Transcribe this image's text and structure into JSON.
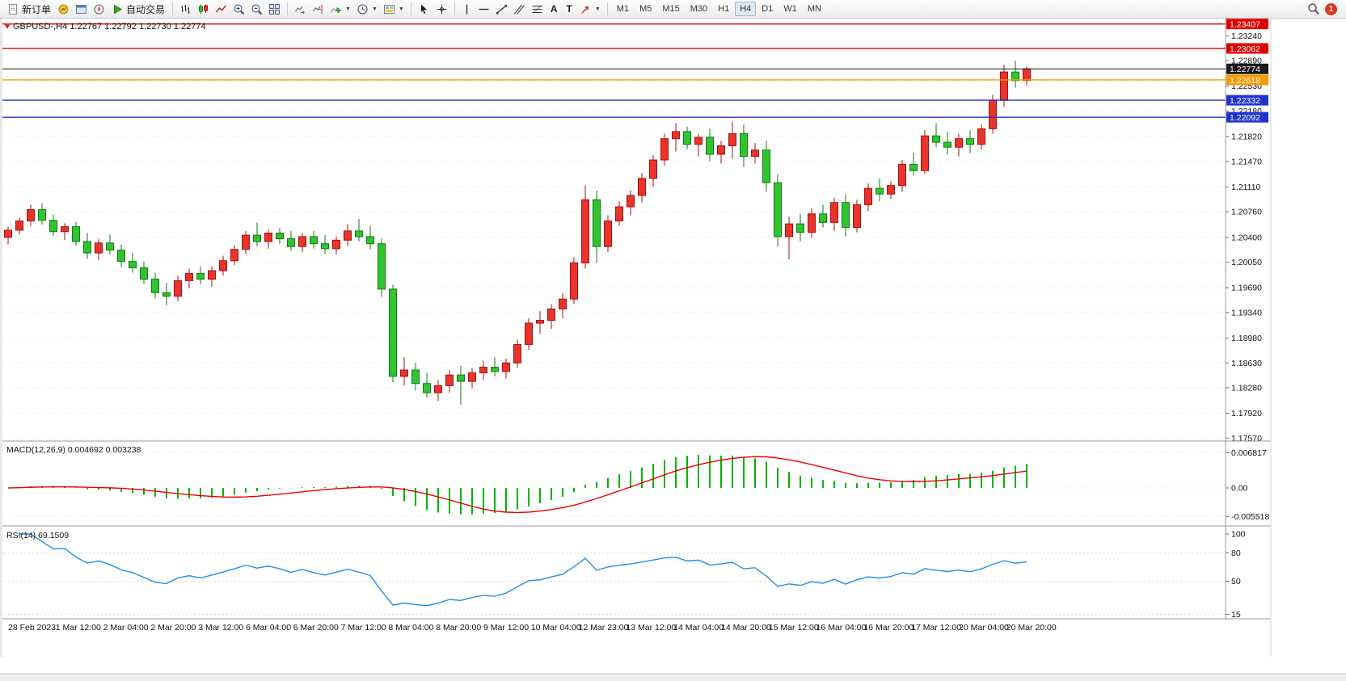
{
  "toolbar": {
    "new_order_label": "新订单",
    "auto_trading_label": "自动交易",
    "timeframes": [
      "M1",
      "M5",
      "M15",
      "M30",
      "H1",
      "H4",
      "D1",
      "W1",
      "MN"
    ],
    "active_timeframe": "H4",
    "notification_badge": "1",
    "icons": [
      "new-order",
      "market-watch",
      "data-window",
      "navigator",
      "auto-trading",
      "bar-chart",
      "candlestick-chart",
      "line-chart",
      "zoom-in",
      "zoom-out",
      "tile-windows",
      "auto-scroll",
      "chart-shift",
      "indicators",
      "periods",
      "templates",
      "cursor",
      "crosshair",
      "vertical-line",
      "horizontal-line",
      "trendline",
      "equidistant-channel",
      "fibonacci",
      "text",
      "text-label",
      "arrow-objects",
      "search"
    ]
  },
  "chart": {
    "symbol_period": "GBPUSD-,H4",
    "open": "1.22767",
    "high": "1.22792",
    "low": "1.22730",
    "close": "1.22774"
  },
  "indicators": {
    "macd": {
      "name": "MACD(12,26,9)",
      "value_main": "0.004692",
      "value_signal": "0.003238"
    },
    "rsi": {
      "name": "RSI(14)",
      "value": "69.1509"
    }
  },
  "chart_data": {
    "type": "candlestick",
    "symbol": "GBPUSD-",
    "timeframe": "H4",
    "colors": {
      "bull": "#e8342c",
      "bull_border": "#a31210",
      "bear": "#30c430",
      "bear_border": "#127a12",
      "macd_histogram": "#00b400",
      "macd_signal": "#ee0000",
      "rsi_line": "#2090e8",
      "grid": "#e6e6e6"
    },
    "price_range": {
      "max": 1.2346,
      "min": 1.1754
    },
    "price_ticks": [
      "1.23240",
      "1.22890",
      "1.22530",
      "1.22180",
      "1.21820",
      "1.21470",
      "1.21110",
      "1.20760",
      "1.20400",
      "1.20050",
      "1.19690",
      "1.19340",
      "1.18980",
      "1.18630",
      "1.18280",
      "1.17920",
      "1.17570"
    ],
    "levels": [
      {
        "price": 1.23407,
        "label": "1.23407",
        "color": "#e00000",
        "kind": "resistance-line"
      },
      {
        "price": 1.23062,
        "label": "1.23062",
        "color": "#e00000",
        "kind": "resistance-line"
      },
      {
        "price": 1.22774,
        "label": "1.22774",
        "color": "#1a1a1a",
        "kind": "current-price"
      },
      {
        "price": 1.22618,
        "label": "1.22618",
        "color": "#f59c00",
        "kind": "support-line"
      },
      {
        "price": 1.22332,
        "label": "1.22332",
        "color": "#2233cc",
        "kind": "support-line"
      },
      {
        "price": 1.22092,
        "label": "1.22092",
        "color": "#2233cc",
        "kind": "support-line"
      }
    ],
    "candles": [
      [
        1.204,
        1.2055,
        1.203,
        1.205
      ],
      [
        1.205,
        1.2068,
        1.2044,
        1.2063
      ],
      [
        1.2063,
        1.2086,
        1.2056,
        1.2079
      ],
      [
        1.2079,
        1.2088,
        1.2058,
        1.2064
      ],
      [
        1.2064,
        1.2072,
        1.2042,
        1.2048
      ],
      [
        1.2048,
        1.206,
        1.2036,
        1.2055
      ],
      [
        1.2055,
        1.2062,
        1.2028,
        1.2034
      ],
      [
        1.2034,
        1.2046,
        1.201,
        1.2018
      ],
      [
        1.2018,
        1.2038,
        1.2008,
        1.2032
      ],
      [
        1.2032,
        1.2044,
        1.2016,
        1.2022
      ],
      [
        1.2022,
        1.203,
        1.1998,
        1.2006
      ],
      [
        1.2006,
        1.2018,
        1.199,
        1.1997
      ],
      [
        1.1997,
        1.2006,
        1.1974,
        1.1981
      ],
      [
        1.1981,
        1.199,
        1.1954,
        1.1962
      ],
      [
        1.1962,
        1.1976,
        1.1944,
        1.1957
      ],
      [
        1.1957,
        1.1986,
        1.195,
        1.1979
      ],
      [
        1.1979,
        1.1996,
        1.1968,
        1.1989
      ],
      [
        1.1989,
        1.1999,
        1.1974,
        1.1981
      ],
      [
        1.1981,
        1.1999,
        1.197,
        1.1993
      ],
      [
        1.1993,
        1.2014,
        1.1986,
        1.2007
      ],
      [
        1.2007,
        1.2029,
        1.2001,
        1.2023
      ],
      [
        1.2023,
        1.2049,
        1.2016,
        1.2043
      ],
      [
        1.2043,
        1.2061,
        1.2027,
        1.2034
      ],
      [
        1.2034,
        1.2051,
        1.2024,
        1.2046
      ],
      [
        1.2046,
        1.2053,
        1.2031,
        1.2038
      ],
      [
        1.2038,
        1.2049,
        1.2021,
        1.2027
      ],
      [
        1.2027,
        1.2046,
        1.2019,
        1.2041
      ],
      [
        1.2041,
        1.2049,
        1.2024,
        1.2031
      ],
      [
        1.2031,
        1.2043,
        1.2017,
        1.2024
      ],
      [
        1.2024,
        1.2041,
        1.2016,
        1.2036
      ],
      [
        1.2036,
        1.2059,
        1.2028,
        1.2049
      ],
      [
        1.2049,
        1.2066,
        1.2034,
        1.2041
      ],
      [
        1.2041,
        1.2056,
        1.2023,
        1.2031
      ],
      [
        1.2031,
        1.2038,
        1.1956,
        1.1967
      ],
      [
        1.1967,
        1.1973,
        1.1836,
        1.1844
      ],
      [
        1.1844,
        1.1871,
        1.1831,
        1.1853
      ],
      [
        1.1853,
        1.1863,
        1.1824,
        1.1834
      ],
      [
        1.1834,
        1.1849,
        1.1814,
        1.1821
      ],
      [
        1.1821,
        1.1839,
        1.1809,
        1.1831
      ],
      [
        1.1831,
        1.1853,
        1.1821,
        1.1846
      ],
      [
        1.1846,
        1.1859,
        1.1804,
        1.1837
      ],
      [
        1.1837,
        1.1856,
        1.1827,
        1.1849
      ],
      [
        1.1849,
        1.1866,
        1.1839,
        1.1857
      ],
      [
        1.1857,
        1.1871,
        1.1844,
        1.1851
      ],
      [
        1.1851,
        1.1869,
        1.1841,
        1.1863
      ],
      [
        1.1863,
        1.1896,
        1.1856,
        1.1889
      ],
      [
        1.1889,
        1.1926,
        1.1881,
        1.1919
      ],
      [
        1.1919,
        1.1936,
        1.1904,
        1.1923
      ],
      [
        1.1923,
        1.1946,
        1.1911,
        1.1939
      ],
      [
        1.1939,
        1.1961,
        1.1926,
        1.1953
      ],
      [
        1.1953,
        1.2012,
        1.1946,
        1.2004
      ],
      [
        1.2004,
        1.2113,
        1.1996,
        1.2093
      ],
      [
        1.2093,
        1.2106,
        1.2004,
        1.2027
      ],
      [
        1.2027,
        1.2071,
        1.2019,
        1.2063
      ],
      [
        1.2063,
        1.2091,
        1.2056,
        1.2083
      ],
      [
        1.2083,
        1.2106,
        1.2071,
        1.2099
      ],
      [
        1.2099,
        1.2131,
        1.2089,
        1.2123
      ],
      [
        1.2123,
        1.2156,
        1.2111,
        1.2149
      ],
      [
        1.2149,
        1.2186,
        1.2141,
        1.2179
      ],
      [
        1.2179,
        1.2201,
        1.2161,
        1.2189
      ],
      [
        1.2189,
        1.2196,
        1.2164,
        1.2171
      ],
      [
        1.2171,
        1.2186,
        1.2154,
        1.2181
      ],
      [
        1.2181,
        1.2193,
        1.2147,
        1.2157
      ],
      [
        1.2157,
        1.2176,
        1.2144,
        1.2169
      ],
      [
        1.2169,
        1.2203,
        1.2151,
        1.2186
      ],
      [
        1.2186,
        1.2199,
        1.2139,
        1.2154
      ],
      [
        1.2154,
        1.2173,
        1.2144,
        1.2163
      ],
      [
        1.2163,
        1.2176,
        1.2104,
        1.2117
      ],
      [
        1.2117,
        1.2129,
        1.2027,
        1.2041
      ],
      [
        1.2041,
        1.2069,
        1.2009,
        1.2059
      ],
      [
        1.2059,
        1.2073,
        1.2034,
        1.2047
      ],
      [
        1.2047,
        1.2081,
        1.2039,
        1.2073
      ],
      [
        1.2073,
        1.2086,
        1.2054,
        1.2061
      ],
      [
        1.2061,
        1.2096,
        1.2049,
        1.2089
      ],
      [
        1.2089,
        1.2101,
        1.2041,
        1.2054
      ],
      [
        1.2054,
        1.2093,
        1.2047,
        1.2086
      ],
      [
        1.2086,
        1.2116,
        1.2077,
        1.2109
      ],
      [
        1.2109,
        1.2123,
        1.2091,
        1.2101
      ],
      [
        1.2101,
        1.2119,
        1.2094,
        1.2113
      ],
      [
        1.2113,
        1.2149,
        1.2104,
        1.2143
      ],
      [
        1.2143,
        1.2159,
        1.2127,
        1.2134
      ],
      [
        1.2134,
        1.2191,
        1.2129,
        1.2183
      ],
      [
        1.2183,
        1.2201,
        1.2167,
        1.2174
      ],
      [
        1.2174,
        1.2189,
        1.2157,
        1.2167
      ],
      [
        1.2167,
        1.2186,
        1.2154,
        1.2179
      ],
      [
        1.2179,
        1.2191,
        1.2159,
        1.2171
      ],
      [
        1.2171,
        1.2199,
        1.2164,
        1.2193
      ],
      [
        1.2193,
        1.2241,
        1.2186,
        1.2233
      ],
      [
        1.2233,
        1.2283,
        1.2224,
        1.2273
      ],
      [
        1.2273,
        1.2289,
        1.2251,
        1.2261
      ],
      [
        1.2261,
        1.2281,
        1.2254,
        1.22774
      ]
    ],
    "time_labels": [
      "28 Feb 2023",
      "1 Mar 12:00",
      "2 Mar 04:00",
      "2 Mar 20:00",
      "3 Mar 12:00",
      "6 Mar 04:00",
      "6 Mar 20:00",
      "7 Mar 12:00",
      "8 Mar 04:00",
      "8 Mar 20:00",
      "9 Mar 12:00",
      "10 Mar 04:00",
      "12 Mar 23:00",
      "13 Mar 12:00",
      "14 Mar 04:00",
      "14 Mar 20:00",
      "15 Mar 12:00",
      "16 Mar 04:00",
      "16 Mar 20:00",
      "17 Mar 12:00",
      "20 Mar 04:00",
      "20 Mar 20:00"
    ],
    "macd": {
      "params": [
        12,
        26,
        9
      ],
      "current_main": 0.004692,
      "current_signal": 0.003238,
      "ticks": [
        {
          "v": 0.006817,
          "label": "0.006817"
        },
        {
          "v": 0,
          "label": "0.00"
        },
        {
          "v": -0.005518,
          "label": "-0.005518"
        }
      ]
    },
    "rsi": {
      "period": 14,
      "current": 69.1509,
      "ticks": [
        {
          "v": 100,
          "label": "100"
        },
        {
          "v": 80,
          "label": "80"
        },
        {
          "v": 50,
          "label": "50"
        },
        {
          "v": 15,
          "label": "15"
        }
      ],
      "levels": [
        80,
        50,
        15
      ]
    }
  }
}
